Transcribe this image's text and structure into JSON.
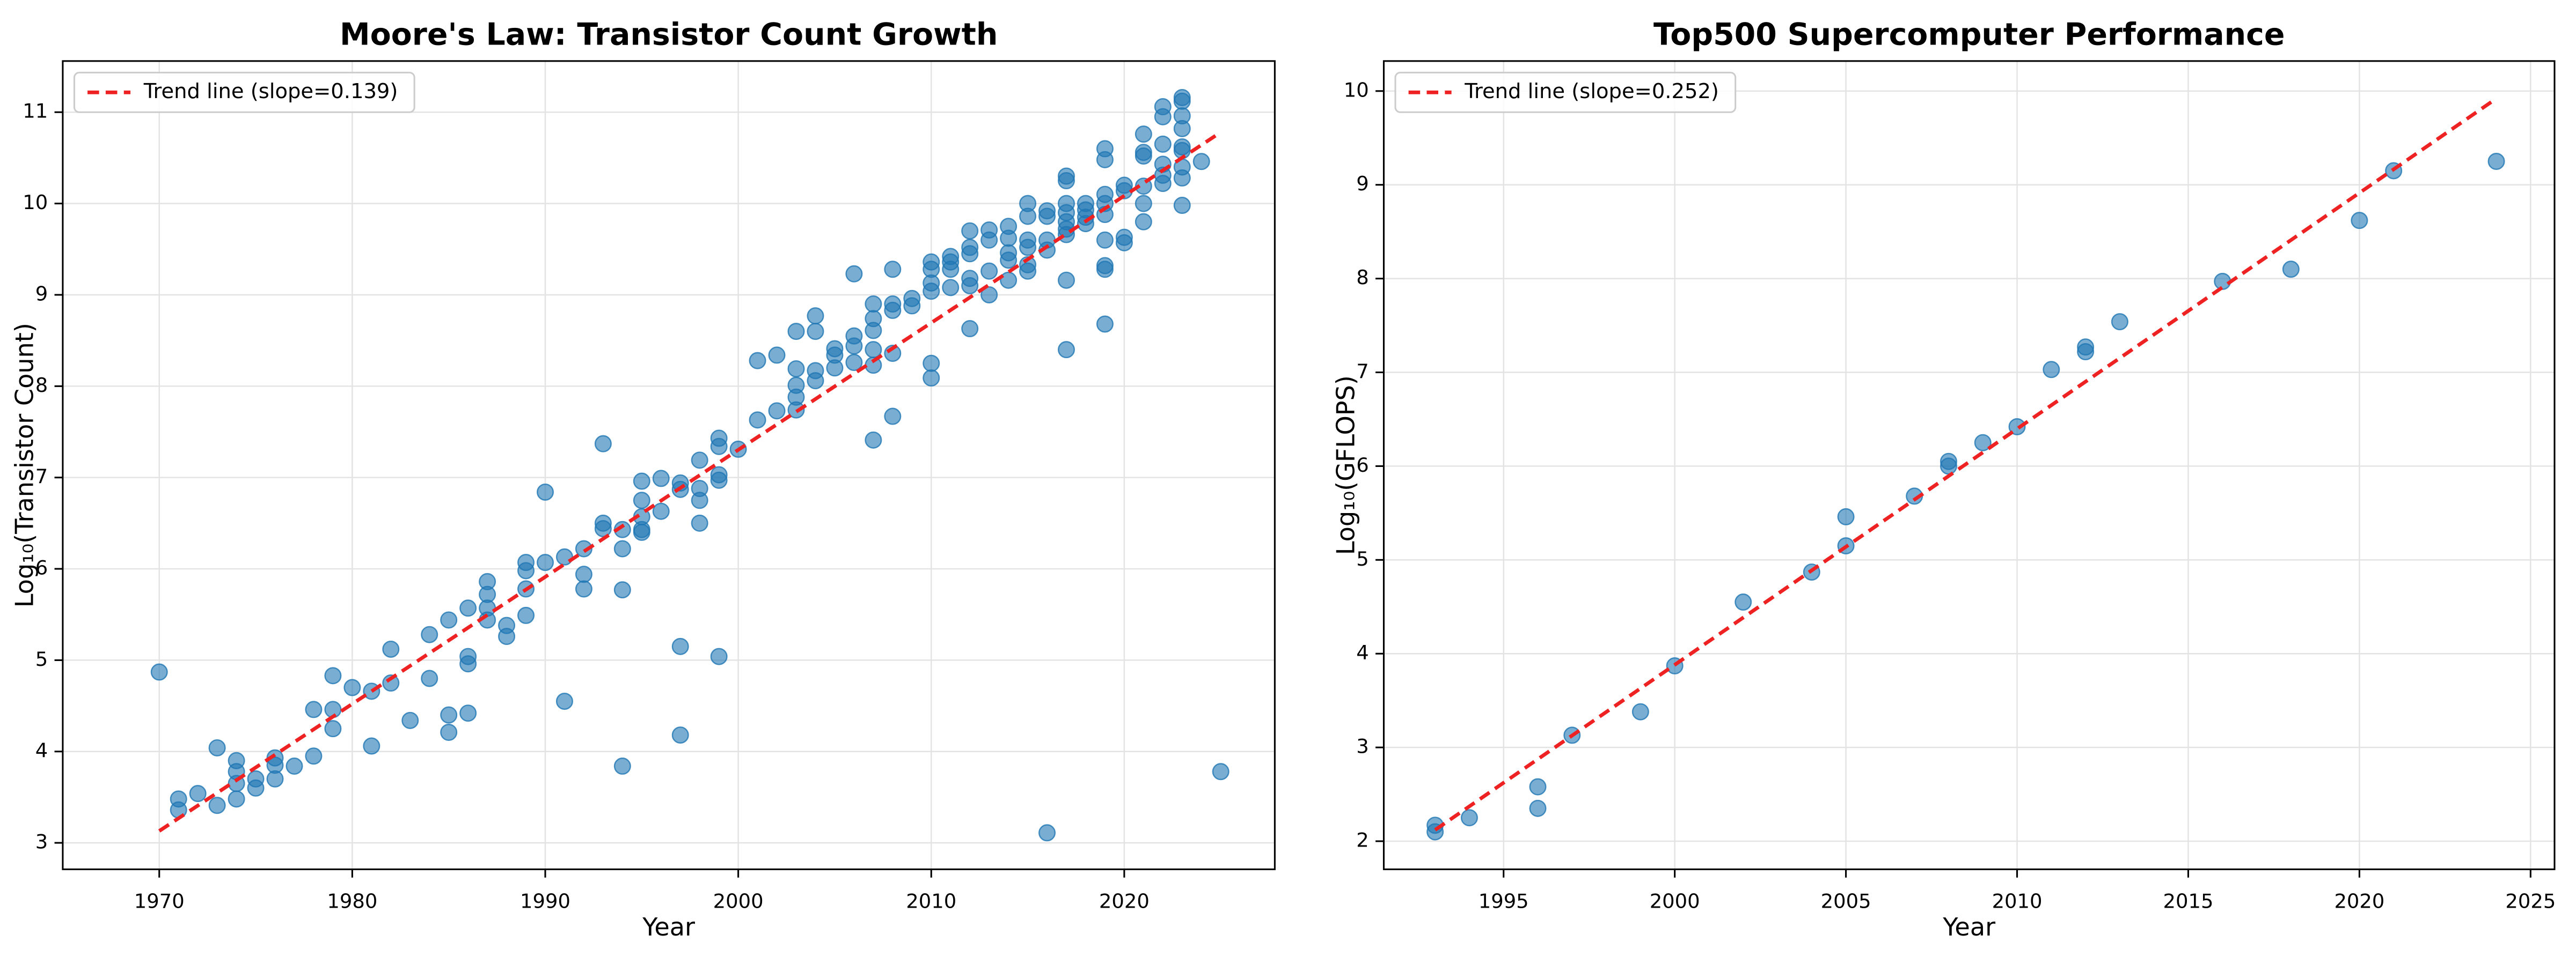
{
  "chart_data": [
    {
      "type": "scatter",
      "title": "Moore's Law: Transistor Count Growth",
      "x_label": "Year",
      "y_label": "Log₁₀(Transistor Count)",
      "xlim": [
        1965,
        2027.8
      ],
      "ylim": [
        2.71,
        11.56
      ],
      "xticks": [
        1970,
        1980,
        1990,
        2000,
        2010,
        2020
      ],
      "yticks": [
        3,
        4,
        5,
        6,
        7,
        8,
        9,
        10,
        11
      ],
      "grid": true,
      "legend": "upper left",
      "series": [
        {
          "color": "#1f77b4",
          "alpha": 0.6,
          "x": [
            1970,
            1971,
            1971,
            1972,
            1973,
            1973,
            1974,
            1974,
            1974,
            1974,
            1975,
            1975,
            1976,
            1976,
            1976,
            1977,
            1978,
            1978,
            1979,
            1979,
            1979,
            1980,
            1981,
            1981,
            1982,
            1982,
            1983,
            1984,
            1984,
            1985,
            1985,
            1985,
            1986,
            1986,
            1986,
            1986,
            1987,
            1987,
            1987,
            1987,
            1988,
            1988,
            1989,
            1989,
            1989,
            1989,
            1990,
            1990,
            1991,
            1991,
            1992,
            1992,
            1992,
            1993,
            1993,
            1993,
            1994,
            1994,
            1994,
            1994,
            1995,
            1995,
            1995,
            1995,
            1995,
            1996,
            1996,
            1997,
            1997,
            1997,
            1997,
            1998,
            1998,
            1998,
            1998,
            1999,
            1999,
            1999,
            1999,
            1999,
            2000,
            2001,
            2001,
            2002,
            2002,
            2003,
            2003,
            2003,
            2003,
            2003,
            2004,
            2004,
            2004,
            2004,
            2005,
            2005,
            2005,
            2006,
            2006,
            2006,
            2006,
            2007,
            2007,
            2007,
            2007,
            2007,
            2007,
            2008,
            2008,
            2008,
            2008,
            2008,
            2009,
            2009,
            2010,
            2010,
            2010,
            2010,
            2010,
            2010,
            2011,
            2011,
            2011,
            2011,
            2012,
            2012,
            2012,
            2012,
            2012,
            2012,
            2013,
            2013,
            2013,
            2013,
            2014,
            2014,
            2014,
            2014,
            2014,
            2015,
            2015,
            2015,
            2015,
            2015,
            2015,
            2016,
            2016,
            2016,
            2016,
            2016,
            2017,
            2017,
            2017,
            2017,
            2017,
            2017,
            2017,
            2017,
            2017,
            2018,
            2018,
            2018,
            2018,
            2019,
            2019,
            2019,
            2019,
            2019,
            2019,
            2019,
            2019,
            2019,
            2020,
            2020,
            2020,
            2020,
            2021,
            2021,
            2021,
            2021,
            2021,
            2021,
            2022,
            2022,
            2022,
            2022,
            2022,
            2022,
            2023,
            2023,
            2023,
            2023,
            2023,
            2023,
            2023,
            2023,
            2023,
            2024,
            2025
          ],
          "values": [
            4.87,
            3.36,
            3.48,
            3.54,
            4.04,
            3.41,
            3.9,
            3.78,
            3.65,
            3.48,
            3.7,
            3.6,
            3.93,
            3.85,
            3.7,
            3.84,
            4.46,
            3.95,
            4.83,
            4.46,
            4.25,
            4.7,
            4.06,
            4.66,
            5.12,
            4.75,
            4.34,
            5.28,
            4.8,
            5.44,
            4.4,
            4.21,
            5.57,
            5.04,
            4.96,
            4.42,
            5.86,
            5.72,
            5.57,
            5.44,
            5.38,
            5.26,
            6.07,
            5.98,
            5.78,
            5.49,
            6.84,
            6.07,
            6.13,
            4.55,
            6.22,
            5.94,
            5.78,
            7.37,
            6.5,
            6.44,
            6.43,
            6.22,
            5.77,
            3.84,
            6.96,
            6.75,
            6.57,
            6.43,
            6.4,
            6.99,
            6.63,
            6.94,
            6.87,
            5.15,
            4.18,
            7.19,
            6.88,
            6.75,
            6.5,
            7.43,
            7.34,
            7.03,
            6.97,
            5.04,
            7.31,
            7.63,
            8.28,
            8.34,
            7.73,
            8.6,
            8.19,
            8.01,
            7.88,
            7.74,
            8.77,
            8.6,
            8.17,
            8.06,
            8.41,
            8.34,
            8.2,
            9.23,
            8.55,
            8.44,
            8.26,
            8.9,
            8.74,
            8.61,
            8.4,
            8.23,
            7.41,
            9.28,
            8.9,
            8.83,
            8.36,
            7.67,
            8.96,
            8.88,
            9.36,
            9.28,
            9.13,
            9.04,
            8.25,
            8.09,
            9.42,
            9.36,
            9.28,
            9.08,
            9.7,
            9.52,
            9.45,
            9.18,
            9.1,
            8.63,
            9.71,
            9.6,
            9.26,
            9.0,
            9.75,
            9.62,
            9.46,
            9.38,
            9.16,
            10.0,
            9.86,
            9.6,
            9.52,
            9.33,
            9.26,
            9.92,
            9.86,
            9.6,
            9.49,
            3.11,
            10.3,
            10.25,
            10.0,
            9.9,
            9.8,
            9.72,
            9.66,
            9.16,
            8.4,
            10.0,
            9.93,
            9.85,
            9.78,
            10.6,
            10.48,
            10.1,
            10.0,
            9.88,
            9.6,
            9.32,
            9.28,
            8.68,
            10.2,
            10.14,
            9.63,
            9.57,
            10.76,
            10.56,
            10.52,
            10.19,
            10.0,
            9.8,
            11.06,
            10.95,
            10.65,
            10.43,
            10.31,
            10.22,
            11.16,
            11.12,
            10.96,
            10.82,
            10.62,
            10.58,
            10.4,
            10.28,
            9.98,
            10.46,
            3.78
          ]
        },
        {
          "name": "Trend line (slope=0.139)",
          "color": "#ee2222",
          "line": "dashed",
          "x": [
            1970,
            2025
          ],
          "values": [
            3.13,
            10.78
          ]
        }
      ]
    },
    {
      "type": "scatter",
      "title": "Top500 Supercomputer Performance",
      "x_label": "Year",
      "y_label": "Log₁₀(GFLOPS)",
      "xlim": [
        1991.5,
        2025.7
      ],
      "ylim": [
        1.7,
        10.32
      ],
      "xticks": [
        1995,
        2000,
        2005,
        2010,
        2015,
        2020,
        2025
      ],
      "yticks": [
        2,
        3,
        4,
        5,
        6,
        7,
        8,
        9,
        10
      ],
      "grid": true,
      "legend": "upper left",
      "series": [
        {
          "color": "#1f77b4",
          "alpha": 0.6,
          "x": [
            1993,
            1993,
            1994,
            1996,
            1996,
            1997,
            1999,
            2000,
            2002,
            2004,
            2005,
            2005,
            2007,
            2008,
            2008,
            2009,
            2010,
            2011,
            2012,
            2012,
            2013,
            2016,
            2018,
            2020,
            2021,
            2024
          ],
          "values": [
            2.1,
            2.17,
            2.25,
            2.35,
            2.58,
            3.13,
            3.38,
            3.87,
            4.55,
            4.87,
            5.15,
            5.46,
            5.68,
            6.0,
            6.05,
            6.25,
            6.42,
            7.03,
            7.22,
            7.27,
            7.54,
            7.97,
            8.1,
            8.62,
            9.15,
            9.25
          ]
        },
        {
          "name": "Trend line (slope=0.252)",
          "color": "#ee2222",
          "line": "dashed",
          "x": [
            1993,
            2024
          ],
          "values": [
            2.12,
            9.92
          ]
        }
      ]
    }
  ]
}
